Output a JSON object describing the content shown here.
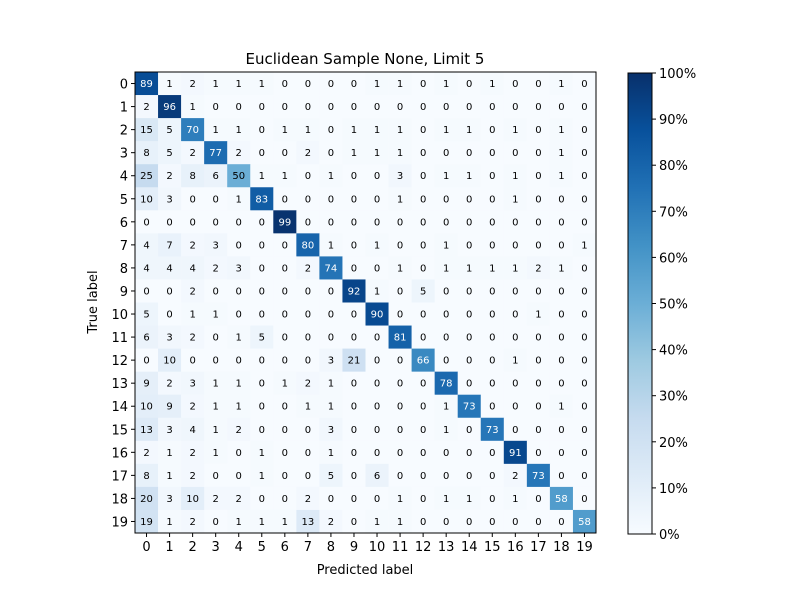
{
  "chart_data": {
    "type": "heatmap",
    "title": "Euclidean Sample None, Limit 5",
    "xlabel": "Predicted label",
    "ylabel": "True label",
    "labels": [
      "0",
      "1",
      "2",
      "3",
      "4",
      "5",
      "6",
      "7",
      "8",
      "9",
      "10",
      "11",
      "12",
      "13",
      "14",
      "15",
      "16",
      "17",
      "18",
      "19"
    ],
    "colorbar": {
      "min": 0,
      "max": 100,
      "ticks": [
        "0%",
        "10%",
        "20%",
        "30%",
        "40%",
        "50%",
        "60%",
        "70%",
        "80%",
        "90%",
        "100%"
      ],
      "colormap": "Blues"
    },
    "matrix": [
      [
        89,
        1,
        2,
        1,
        1,
        1,
        0,
        0,
        0,
        0,
        1,
        1,
        0,
        1,
        0,
        1,
        0,
        0,
        1,
        0
      ],
      [
        2,
        96,
        1,
        0,
        0,
        0,
        0,
        0,
        0,
        0,
        0,
        0,
        0,
        0,
        0,
        0,
        0,
        0,
        0,
        0
      ],
      [
        15,
        5,
        70,
        1,
        1,
        0,
        1,
        1,
        0,
        1,
        1,
        1,
        0,
        1,
        1,
        0,
        1,
        0,
        1,
        0
      ],
      [
        8,
        5,
        2,
        77,
        2,
        0,
        0,
        2,
        0,
        1,
        1,
        1,
        0,
        0,
        0,
        0,
        0,
        0,
        1,
        0
      ],
      [
        25,
        2,
        8,
        6,
        50,
        1,
        1,
        0,
        1,
        0,
        0,
        3,
        0,
        1,
        1,
        0,
        1,
        0,
        1,
        0
      ],
      [
        10,
        3,
        0,
        0,
        1,
        83,
        0,
        0,
        0,
        0,
        0,
        1,
        0,
        0,
        0,
        0,
        1,
        0,
        0,
        0
      ],
      [
        0,
        0,
        0,
        0,
        0,
        0,
        99,
        0,
        0,
        0,
        0,
        0,
        0,
        0,
        0,
        0,
        0,
        0,
        0,
        0
      ],
      [
        4,
        7,
        2,
        3,
        0,
        0,
        0,
        80,
        1,
        0,
        1,
        0,
        0,
        1,
        0,
        0,
        0,
        0,
        0,
        1
      ],
      [
        4,
        4,
        4,
        2,
        3,
        0,
        0,
        2,
        74,
        0,
        0,
        1,
        0,
        1,
        1,
        1,
        1,
        2,
        1,
        0
      ],
      [
        0,
        0,
        2,
        0,
        0,
        0,
        0,
        0,
        0,
        92,
        1,
        0,
        5,
        0,
        0,
        0,
        0,
        0,
        0,
        0
      ],
      [
        5,
        0,
        1,
        1,
        0,
        0,
        0,
        0,
        0,
        0,
        90,
        0,
        0,
        0,
        0,
        0,
        0,
        1,
        0,
        0
      ],
      [
        6,
        3,
        2,
        0,
        1,
        5,
        0,
        0,
        0,
        0,
        0,
        81,
        0,
        0,
        0,
        0,
        0,
        0,
        0,
        0
      ],
      [
        0,
        10,
        0,
        0,
        0,
        0,
        0,
        0,
        3,
        21,
        0,
        0,
        66,
        0,
        0,
        0,
        1,
        0,
        0,
        0
      ],
      [
        9,
        2,
        3,
        1,
        1,
        0,
        1,
        2,
        1,
        0,
        0,
        0,
        0,
        78,
        0,
        0,
        0,
        0,
        0,
        0
      ],
      [
        10,
        9,
        2,
        1,
        1,
        0,
        0,
        1,
        1,
        0,
        0,
        0,
        0,
        1,
        73,
        0,
        0,
        0,
        1,
        0
      ],
      [
        13,
        3,
        4,
        1,
        2,
        0,
        0,
        0,
        3,
        0,
        0,
        0,
        0,
        1,
        0,
        73,
        0,
        0,
        0,
        0
      ],
      [
        2,
        1,
        2,
        1,
        0,
        1,
        0,
        0,
        1,
        0,
        0,
        0,
        0,
        0,
        0,
        0,
        91,
        0,
        0,
        0
      ],
      [
        8,
        1,
        2,
        0,
        0,
        1,
        0,
        0,
        5,
        0,
        6,
        0,
        0,
        0,
        0,
        0,
        2,
        73,
        0,
        0
      ],
      [
        20,
        3,
        10,
        2,
        2,
        0,
        0,
        2,
        0,
        0,
        0,
        1,
        0,
        1,
        1,
        0,
        1,
        0,
        58,
        0
      ],
      [
        19,
        1,
        2,
        0,
        1,
        1,
        1,
        13,
        2,
        0,
        1,
        1,
        0,
        0,
        0,
        0,
        0,
        0,
        0,
        58
      ]
    ]
  }
}
